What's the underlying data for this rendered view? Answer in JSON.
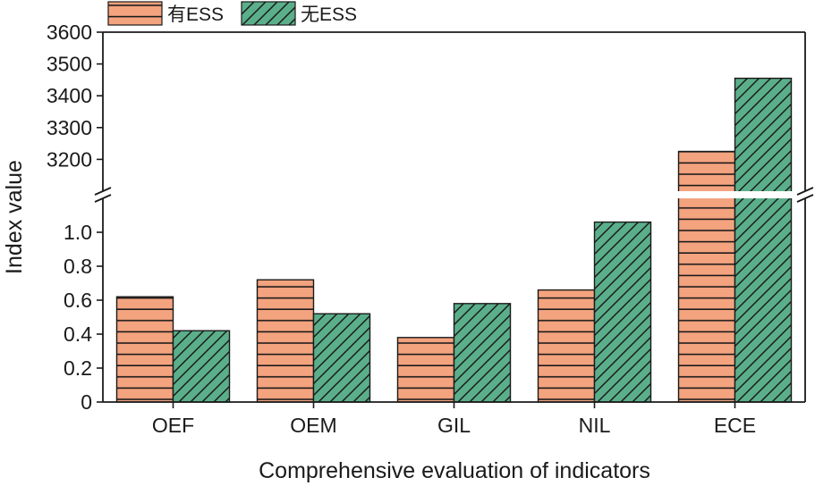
{
  "chart_data": {
    "type": "bar",
    "xlabel": "Comprehensive evaluation of indicators",
    "ylabel": "Index value",
    "categories": [
      "OEF",
      "OEM",
      "GIL",
      "NIL",
      "ECE"
    ],
    "series": [
      {
        "name": "有ESS",
        "values": [
          0.62,
          0.72,
          0.38,
          0.66,
          3225
        ],
        "color": "#f4a37f",
        "pattern": "horizontal-lines"
      },
      {
        "name": "无ESS",
        "values": [
          0.42,
          0.52,
          0.58,
          1.06,
          3455
        ],
        "color": "#5aaf8a",
        "pattern": "diagonal-lines"
      }
    ],
    "axis_break": true,
    "lower_ylim": [
      0,
      1.2
    ],
    "lower_yticks": [
      "0",
      "0.2",
      "0.4",
      "0.6",
      "0.8",
      "1.0"
    ],
    "upper_ylim": [
      3100,
      3600
    ],
    "upper_yticks": [
      "3200",
      "3300",
      "3400",
      "3500",
      "3600"
    ],
    "legend_position": "top-left",
    "grid": false
  }
}
